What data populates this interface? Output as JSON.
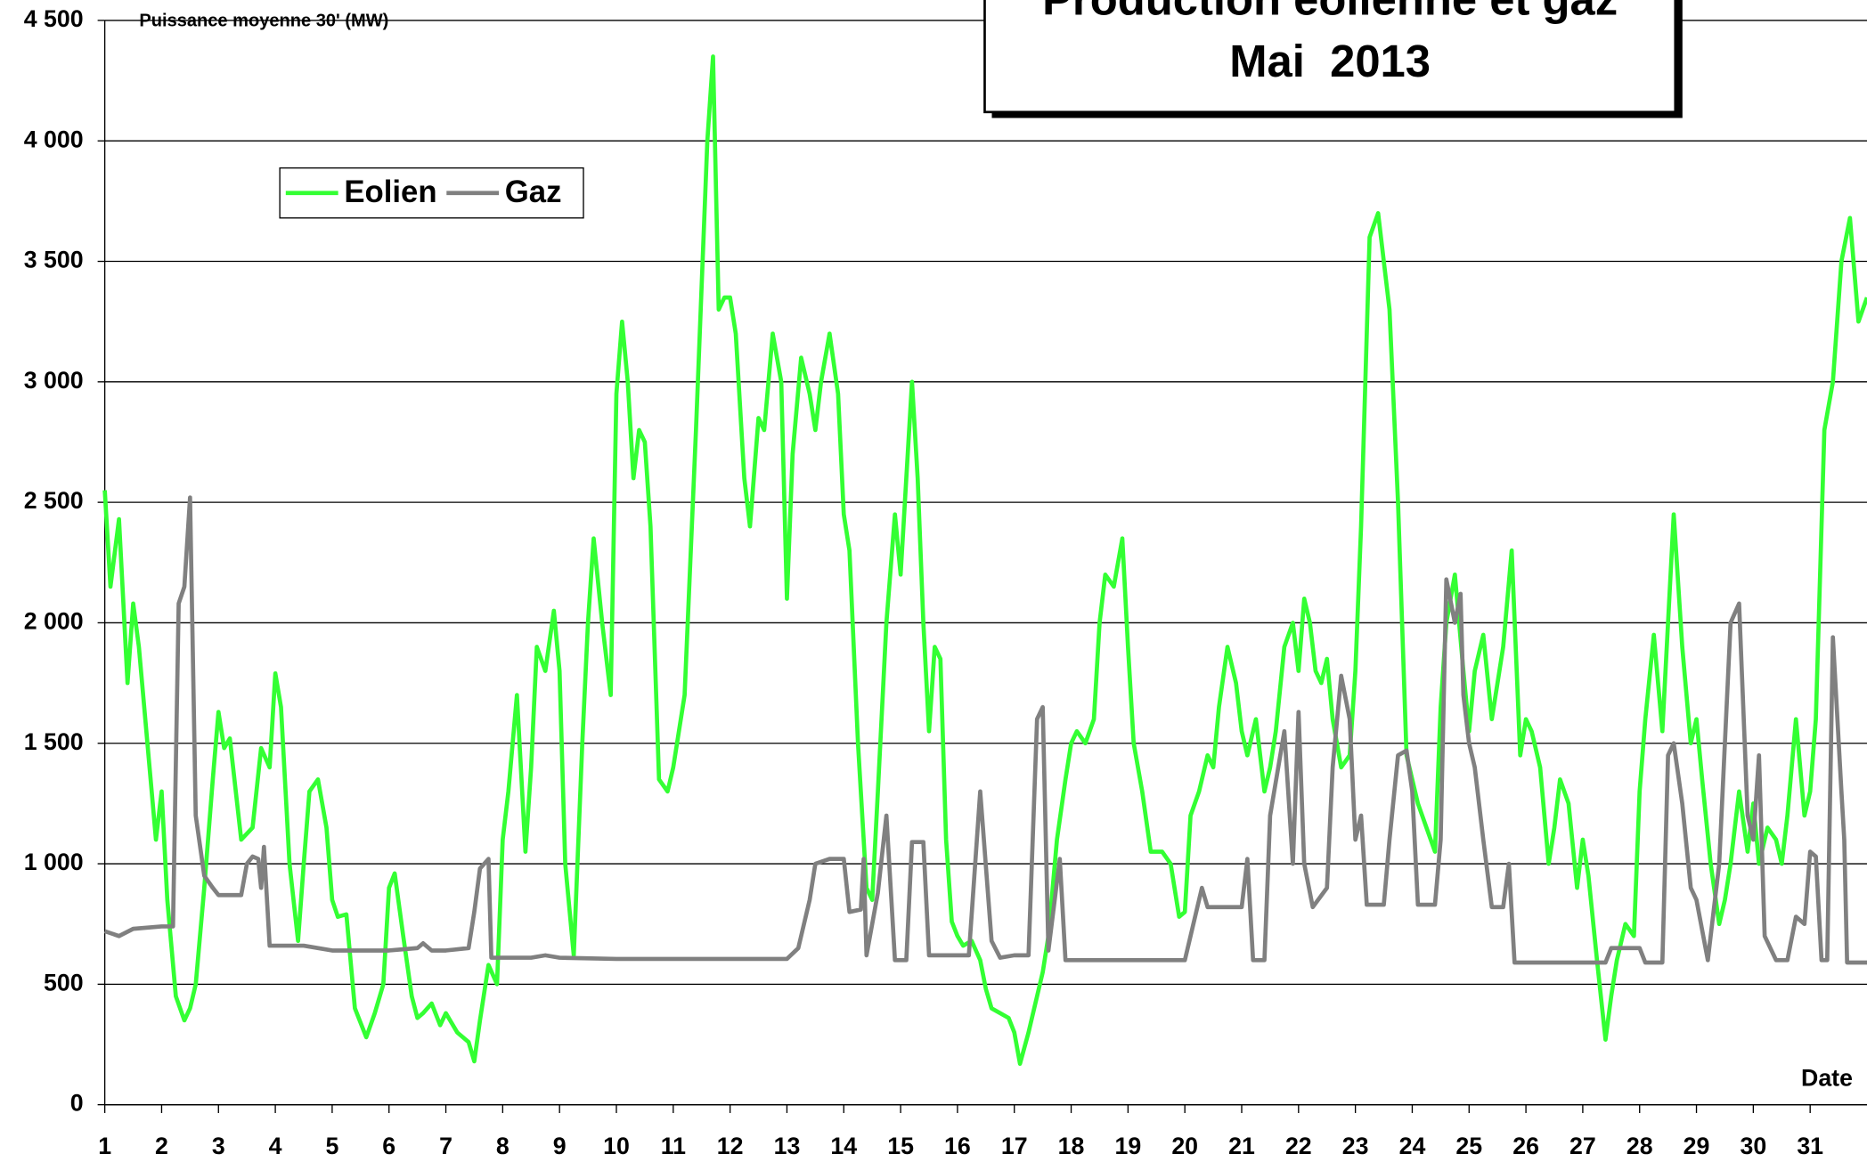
{
  "chart_data": {
    "type": "line",
    "title": "Production éolienne et gaz",
    "subtitle": "Mai  2013",
    "y_label": "Puissance moyenne 30' (MW)",
    "x_label": "Date",
    "xlim": [
      1,
      32
    ],
    "xticks": [
      1,
      2,
      3,
      4,
      5,
      6,
      7,
      8,
      9,
      10,
      11,
      12,
      13,
      14,
      15,
      16,
      17,
      18,
      19,
      20,
      21,
      22,
      23,
      24,
      25,
      26,
      27,
      28,
      29,
      30,
      31
    ],
    "ylim": [
      0,
      4500
    ],
    "yticks": [
      0,
      {
        "value": 500,
        "label": "500"
      },
      {
        "value": 1000,
        "label": "1 000"
      },
      {
        "value": 1500,
        "label": "1 500"
      },
      {
        "value": 2000,
        "label": "2 000"
      },
      {
        "value": 2500,
        "label": "2 500"
      },
      {
        "value": 3000,
        "label": "3 000"
      },
      {
        "value": 3500,
        "label": "3 500"
      },
      {
        "value": 4000,
        "label": "4 000"
      },
      {
        "value": 4500,
        "label": "4 500"
      }
    ],
    "grid": true,
    "legend": "upper left",
    "series": [
      {
        "name": "Eolien",
        "color": "#33ff33",
        "x": [
          1.0,
          1.1,
          1.25,
          1.4,
          1.5,
          1.6,
          1.75,
          1.9,
          2.0,
          2.1,
          2.25,
          2.4,
          2.5,
          2.6,
          2.75,
          2.9,
          3.0,
          3.1,
          3.2,
          3.4,
          3.6,
          3.75,
          3.9,
          4.0,
          4.1,
          4.25,
          4.4,
          4.5,
          4.6,
          4.75,
          4.9,
          5.0,
          5.1,
          5.25,
          5.4,
          5.6,
          5.75,
          5.9,
          6.0,
          6.1,
          6.25,
          6.4,
          6.5,
          6.6,
          6.75,
          6.9,
          7.0,
          7.2,
          7.4,
          7.5,
          7.6,
          7.75,
          7.9,
          8.0,
          8.1,
          8.25,
          8.4,
          8.5,
          8.6,
          8.75,
          8.9,
          9.0,
          9.1,
          9.25,
          9.4,
          9.5,
          9.6,
          9.75,
          9.9,
          10.0,
          10.1,
          10.2,
          10.3,
          10.4,
          10.5,
          10.6,
          10.75,
          10.9,
          11.0,
          11.2,
          11.4,
          11.6,
          11.7,
          11.8,
          11.9,
          12.0,
          12.1,
          12.25,
          12.35,
          12.5,
          12.6,
          12.75,
          12.9,
          13.0,
          13.1,
          13.25,
          13.4,
          13.5,
          13.6,
          13.75,
          13.9,
          14.0,
          14.1,
          14.25,
          14.4,
          14.5,
          14.6,
          14.75,
          14.9,
          15.0,
          15.1,
          15.2,
          15.3,
          15.4,
          15.5,
          15.6,
          15.7,
          15.8,
          15.9,
          16.0,
          16.1,
          16.25,
          16.4,
          16.5,
          16.6,
          16.75,
          16.9,
          17.0,
          17.1,
          17.25,
          17.4,
          17.5,
          17.6,
          17.75,
          17.9,
          18.0,
          18.1,
          18.25,
          18.4,
          18.5,
          18.6,
          18.75,
          18.9,
          19.0,
          19.1,
          19.25,
          19.4,
          19.6,
          19.75,
          19.9,
          20.0,
          20.1,
          20.25,
          20.4,
          20.5,
          20.6,
          20.75,
          20.9,
          21.0,
          21.1,
          21.25,
          21.4,
          21.5,
          21.6,
          21.75,
          21.9,
          22.0,
          22.1,
          22.2,
          22.3,
          22.4,
          22.5,
          22.6,
          22.75,
          22.9,
          23.0,
          23.1,
          23.25,
          23.4,
          23.5,
          23.6,
          23.75,
          23.9,
          24.0,
          24.1,
          24.25,
          24.4,
          24.5,
          24.6,
          24.75,
          24.9,
          25.0,
          25.1,
          25.25,
          25.4,
          25.5,
          25.6,
          25.75,
          25.9,
          26.0,
          26.1,
          26.25,
          26.4,
          26.5,
          26.6,
          26.75,
          26.9,
          27.0,
          27.1,
          27.25,
          27.4,
          27.5,
          27.6,
          27.75,
          27.9,
          28.0,
          28.1,
          28.25,
          28.4,
          28.5,
          28.6,
          28.75,
          28.9,
          29.0,
          29.1,
          29.25,
          29.4,
          29.5,
          29.6,
          29.75,
          29.9,
          30.0,
          30.1,
          30.25,
          30.4,
          30.5,
          30.6,
          30.75,
          30.9,
          31.0,
          31.1,
          31.25,
          31.4,
          31.55,
          31.7,
          31.85,
          32.0
        ],
        "values": [
          2550,
          2150,
          2430,
          1750,
          2080,
          1900,
          1500,
          1100,
          1300,
          850,
          450,
          350,
          400,
          500,
          900,
          1350,
          1630,
          1480,
          1520,
          1100,
          1150,
          1480,
          1400,
          1790,
          1650,
          1000,
          680,
          1000,
          1300,
          1350,
          1150,
          850,
          780,
          790,
          400,
          280,
          380,
          500,
          900,
          960,
          700,
          450,
          360,
          380,
          420,
          330,
          380,
          300,
          260,
          180,
          350,
          580,
          500,
          1100,
          1300,
          1700,
          1050,
          1400,
          1900,
          1800,
          2050,
          1800,
          1000,
          620,
          1500,
          2000,
          2350,
          2000,
          1700,
          2950,
          3250,
          3000,
          2600,
          2800,
          2750,
          2400,
          1350,
          1300,
          1400,
          1700,
          2800,
          4000,
          4350,
          3300,
          3350,
          3350,
          3200,
          2600,
          2400,
          2850,
          2800,
          3200,
          3000,
          2100,
          2700,
          3100,
          2950,
          2800,
          3000,
          3200,
          2950,
          2450,
          2300,
          1500,
          900,
          850,
          1300,
          2000,
          2450,
          2200,
          2600,
          3000,
          2600,
          2000,
          1550,
          1900,
          1850,
          1100,
          760,
          700,
          660,
          680,
          600,
          480,
          400,
          380,
          360,
          300,
          170,
          300,
          450,
          550,
          700,
          1100,
          1350,
          1500,
          1550,
          1500,
          1600,
          2000,
          2200,
          2150,
          2350,
          1900,
          1500,
          1300,
          1050,
          1050,
          1000,
          780,
          800,
          1200,
          1300,
          1450,
          1400,
          1650,
          1900,
          1750,
          1550,
          1450,
          1600,
          1300,
          1400,
          1550,
          1900,
          2000,
          1800,
          2100,
          2000,
          1800,
          1750,
          1850,
          1600,
          1400,
          1450,
          1800,
          2400,
          3600,
          3700,
          3500,
          3300,
          2500,
          1450,
          1350,
          1250,
          1150,
          1050,
          1650,
          2000,
          2200,
          1800,
          1550,
          1800,
          1950,
          1600,
          1750,
          1900,
          2300,
          1450,
          1600,
          1550,
          1400,
          1000,
          1150,
          1350,
          1250,
          900,
          1100,
          950,
          600,
          270,
          450,
          600,
          750,
          700,
          1300,
          1600,
          1950,
          1550,
          2000,
          2450,
          1900,
          1500,
          1600,
          1350,
          1000,
          750,
          850,
          1000,
          1300,
          1050,
          1250,
          1000,
          1150,
          1100,
          1000,
          1200,
          1600,
          1200,
          1300,
          1600,
          2800,
          3000,
          3500,
          3680,
          3250,
          3350
        ]
      },
      {
        "name": "Gaz",
        "color": "#808080",
        "x": [
          1.0,
          1.25,
          1.5,
          2.0,
          2.2,
          2.3,
          2.4,
          2.5,
          2.6,
          2.75,
          2.9,
          3.0,
          3.4,
          3.5,
          3.6,
          3.7,
          3.75,
          3.8,
          3.9,
          4.5,
          5.0,
          6.0,
          6.5,
          6.6,
          6.75,
          7.0,
          7.4,
          7.5,
          7.6,
          7.75,
          7.8,
          8.5,
          8.75,
          9.0,
          10.0,
          11.0,
          12.0,
          13.0,
          13.2,
          13.4,
          13.5,
          13.75,
          14.0,
          14.1,
          14.3,
          14.35,
          14.4,
          14.6,
          14.75,
          14.8,
          14.9,
          15.1,
          15.2,
          15.4,
          15.5,
          16.0,
          16.2,
          16.4,
          16.6,
          16.75,
          17.0,
          17.25,
          17.4,
          17.5,
          17.6,
          17.8,
          17.9,
          18.5,
          19.0,
          20.0,
          20.3,
          20.4,
          21.0,
          21.1,
          21.2,
          21.4,
          21.5,
          21.75,
          21.9,
          22.0,
          22.1,
          22.25,
          22.5,
          22.6,
          22.75,
          22.9,
          23.0,
          23.1,
          23.2,
          23.5,
          23.6,
          23.75,
          23.9,
          24.0,
          24.1,
          24.4,
          24.5,
          24.6,
          24.75,
          24.85,
          24.9,
          25.0,
          25.1,
          25.25,
          25.4,
          25.6,
          25.7,
          25.8,
          26.5,
          27.0,
          27.4,
          27.5,
          28.0,
          28.1,
          28.4,
          28.5,
          28.6,
          28.75,
          28.9,
          29.0,
          29.2,
          29.4,
          29.6,
          29.75,
          29.9,
          30.0,
          30.1,
          30.2,
          30.4,
          30.6,
          30.75,
          30.9,
          31.0,
          31.1,
          31.2,
          31.3,
          31.4,
          31.55,
          31.6,
          31.65,
          32.0
        ],
        "values": [
          720,
          700,
          730,
          740,
          740,
          2080,
          2150,
          2520,
          1200,
          950,
          900,
          870,
          870,
          1000,
          1030,
          1020,
          900,
          1070,
          660,
          660,
          640,
          640,
          650,
          670,
          640,
          640,
          650,
          800,
          980,
          1020,
          610,
          610,
          620,
          610,
          605,
          605,
          605,
          605,
          650,
          850,
          1000,
          1020,
          1020,
          800,
          810,
          1020,
          620,
          880,
          1200,
          1000,
          600,
          600,
          1090,
          1090,
          620,
          620,
          620,
          1300,
          680,
          610,
          620,
          620,
          1600,
          1650,
          640,
          1020,
          600,
          600,
          600,
          600,
          900,
          820,
          820,
          1020,
          600,
          600,
          1200,
          1550,
          1000,
          1630,
          1000,
          820,
          900,
          1400,
          1780,
          1600,
          1100,
          1200,
          830,
          830,
          1100,
          1450,
          1470,
          1300,
          830,
          830,
          1100,
          2180,
          2000,
          2120,
          1700,
          1500,
          1400,
          1100,
          820,
          820,
          1000,
          590,
          590,
          590,
          590,
          650,
          650,
          590,
          590,
          1450,
          1500,
          1250,
          900,
          850,
          600,
          1000,
          2000,
          2080,
          1200,
          1100,
          1450,
          700,
          600,
          600,
          780,
          750,
          1050,
          1030,
          600,
          600,
          1940,
          1300,
          1100,
          590,
          590
        ]
      }
    ]
  }
}
